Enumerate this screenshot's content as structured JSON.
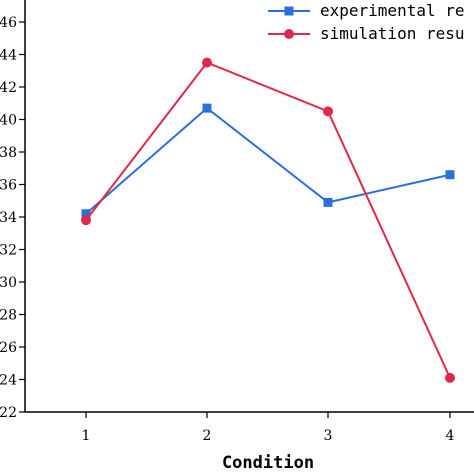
{
  "chart_data": {
    "type": "line",
    "title": "",
    "xlabel": "Condition",
    "ylabel": "",
    "categories": [
      "1",
      "2",
      "3",
      "4"
    ],
    "ylim": [
      22,
      46
    ],
    "yticks": [
      "22",
      "24",
      "26",
      "28",
      "30",
      "32",
      "34",
      "36",
      "38",
      "40",
      "42",
      "44",
      "46"
    ],
    "grid": false,
    "legend_position": "top-right",
    "series": [
      {
        "name": "experimental re",
        "marker": "square",
        "color": "#2a6fdb",
        "values": [
          34.2,
          40.7,
          34.9,
          36.6
        ]
      },
      {
        "name": "simulation resu",
        "marker": "circle",
        "color": "#e0284a",
        "values": [
          33.8,
          43.5,
          40.5,
          24.1
        ]
      }
    ]
  }
}
